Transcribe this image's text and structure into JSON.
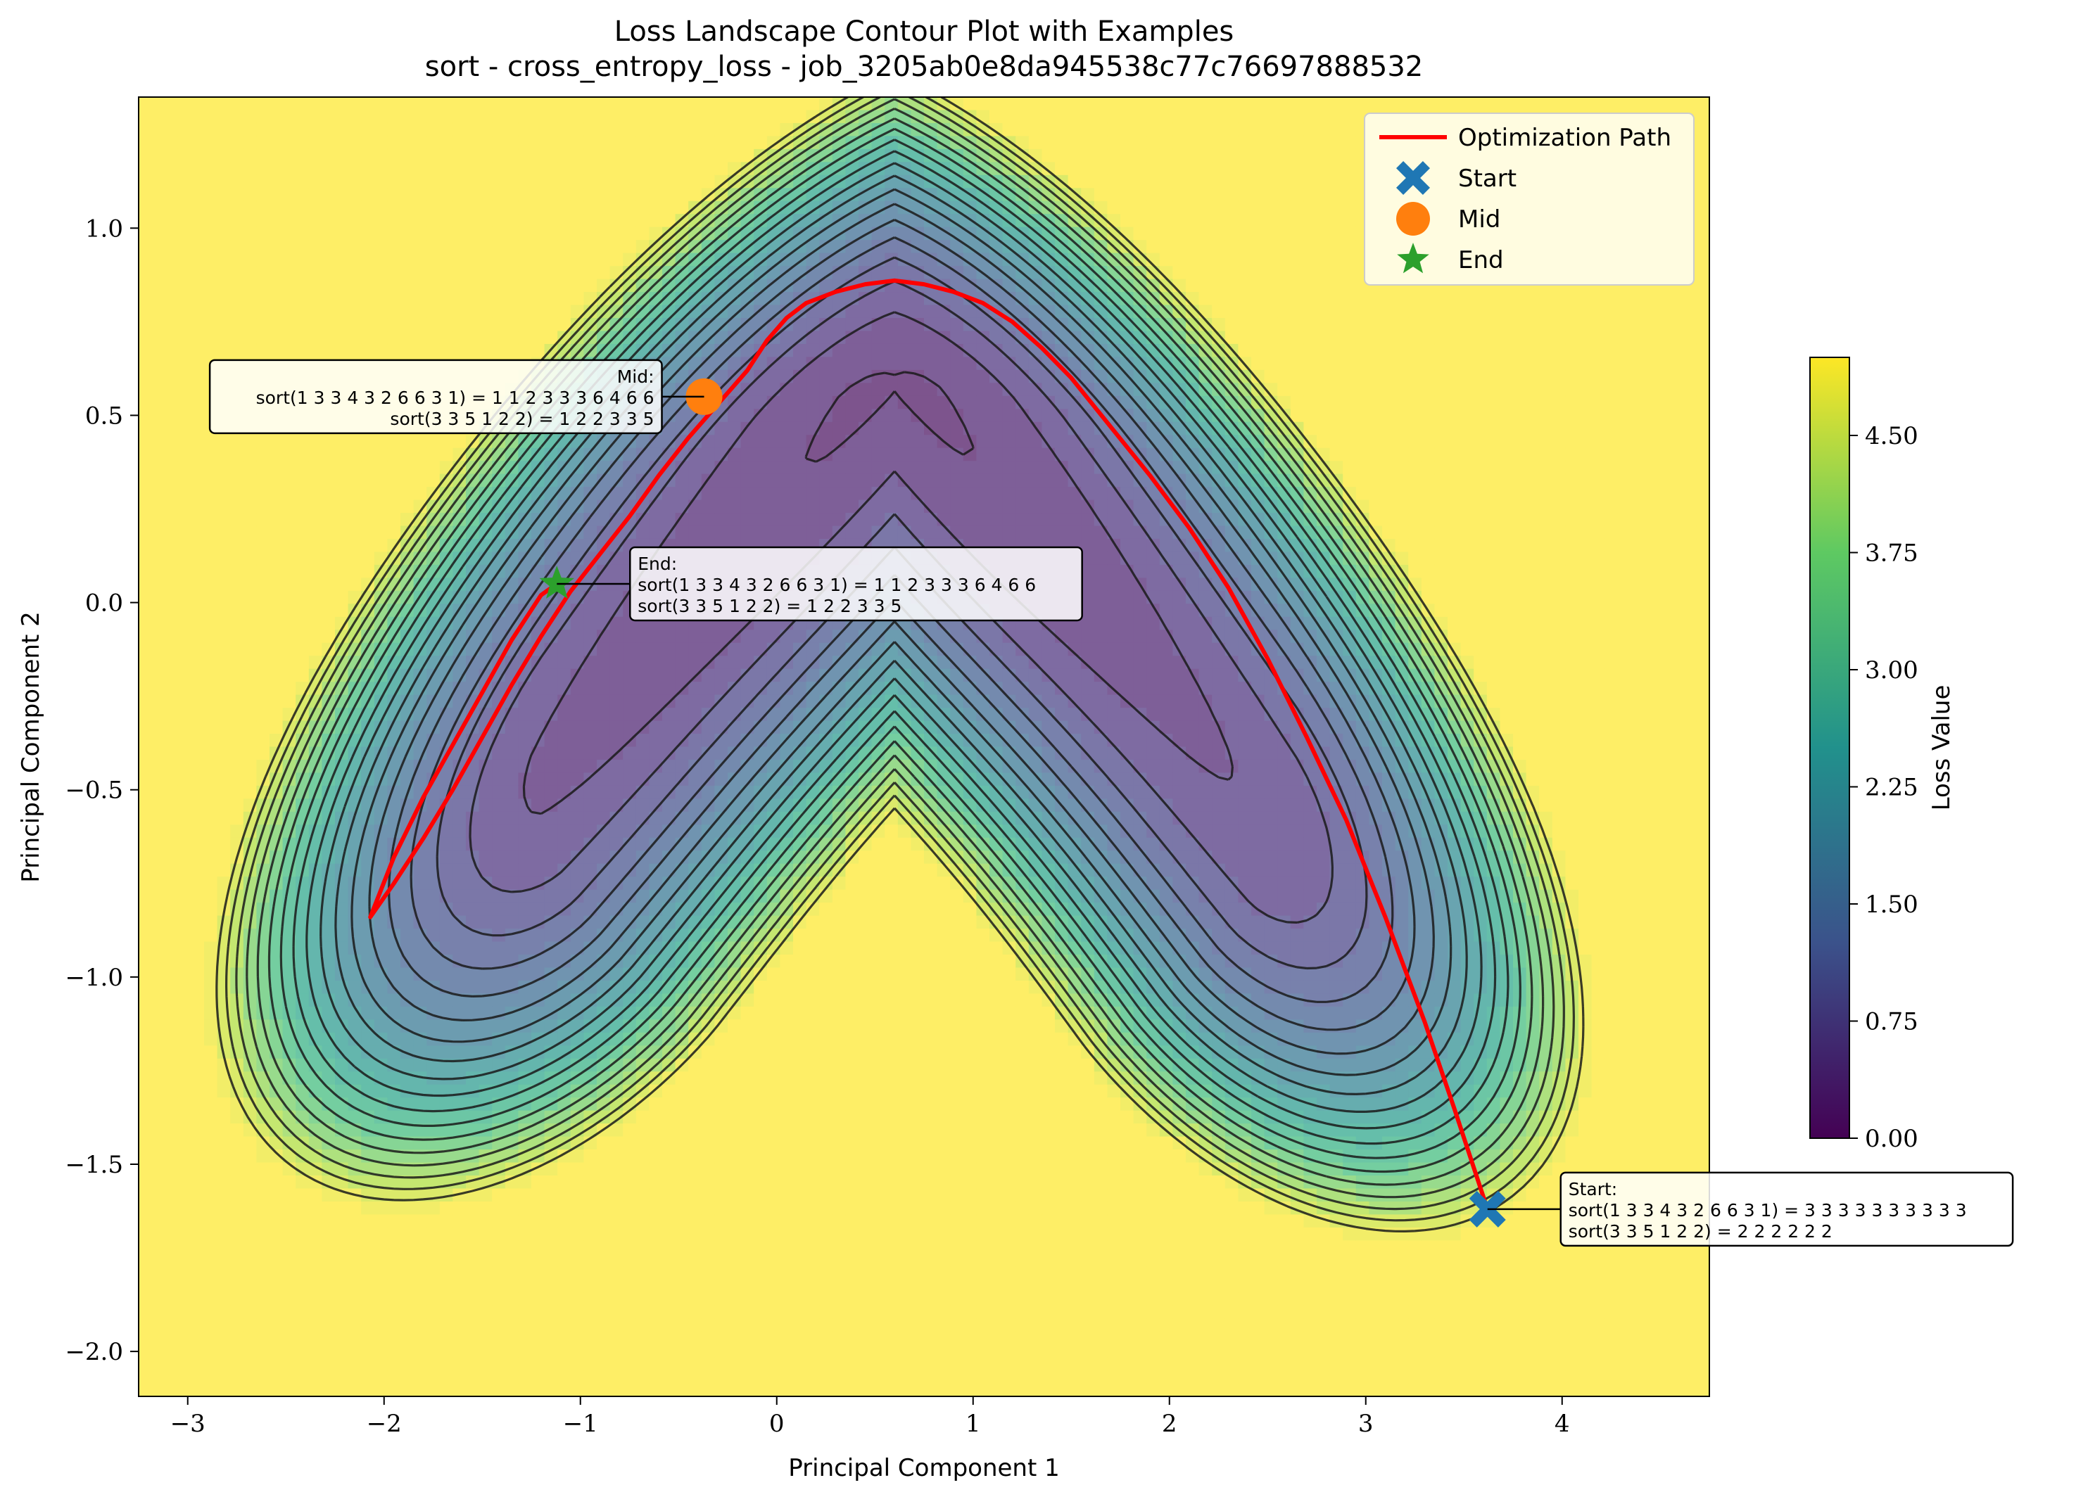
{
  "chart_data": {
    "type": "contour",
    "title": "Loss Landscape Contour Plot with Examples",
    "subtitle": "sort - cross_entropy_loss - job_3205ab0e8da945538c77c76697888532",
    "xlabel": "Principal Component 1",
    "ylabel": "Principal Component 2",
    "xlim": [
      -3.25,
      4.75
    ],
    "ylim": [
      -2.12,
      1.35
    ],
    "xticks": [
      -3,
      -2,
      -1,
      0,
      1,
      2,
      3,
      4
    ],
    "xtick_labels": [
      "−3",
      "−2",
      "−1",
      "0",
      "1",
      "2",
      "3",
      "4"
    ],
    "yticks": [
      -2.0,
      -1.5,
      -1.0,
      -0.5,
      0.0,
      0.5,
      1.0
    ],
    "ytick_labels": [
      "−2.0",
      "−1.5",
      "−1.0",
      "−0.5",
      "0.0",
      "0.5",
      "1.0"
    ],
    "colorbar": {
      "label": "Loss Value",
      "range": [
        0.0,
        5.0
      ],
      "ticks": [
        0.0,
        0.75,
        1.5,
        2.25,
        3.0,
        3.75,
        4.5
      ],
      "tick_labels": [
        "0.00",
        "0.75",
        "1.50",
        "2.25",
        "3.00",
        "3.75",
        "4.50"
      ],
      "colormap": "viridis",
      "levels": 20
    },
    "surface": {
      "model": "loss = c0 + k*((a + b*x - y^2)^2 + ...) valley shaped like an inverted V",
      "minimum_value": 0.2,
      "max_value_top_left": 4.9,
      "max_value_bottom_right": 4.9
    },
    "series": [
      {
        "name": "Optimization Path",
        "type": "line",
        "color": "#ff0000",
        "x": [
          3.62,
          3.45,
          3.3,
          3.1,
          2.9,
          2.7,
          2.5,
          2.3,
          2.1,
          1.9,
          1.7,
          1.5,
          1.35,
          1.2,
          1.05,
          0.9,
          0.75,
          0.6,
          0.45,
          0.3,
          0.15,
          0.05,
          -0.05,
          -0.15,
          -0.3,
          -0.45,
          -0.6,
          -0.75,
          -0.9,
          -1.05,
          -1.2,
          -1.35,
          -1.5,
          -1.65,
          -1.8,
          -1.95,
          -2.07,
          -1.95,
          -1.8,
          -1.65,
          -1.5,
          -1.35,
          -1.2,
          -1.12
        ],
        "y": [
          -1.62,
          -1.35,
          -1.12,
          -0.84,
          -0.58,
          -0.36,
          -0.15,
          0.04,
          0.2,
          0.34,
          0.47,
          0.6,
          0.68,
          0.75,
          0.8,
          0.83,
          0.85,
          0.86,
          0.85,
          0.83,
          0.8,
          0.76,
          0.7,
          0.62,
          0.53,
          0.44,
          0.34,
          0.23,
          0.13,
          0.03,
          -0.09,
          -0.22,
          -0.36,
          -0.5,
          -0.63,
          -0.75,
          -0.84,
          -0.68,
          -0.52,
          -0.38,
          -0.24,
          -0.1,
          0.02,
          0.05
        ]
      },
      {
        "name": "Start",
        "type": "scatter",
        "marker": "X",
        "color": "#1f77b4",
        "x": [
          3.62
        ],
        "y": [
          -1.62
        ]
      },
      {
        "name": "Mid",
        "type": "scatter",
        "marker": "o",
        "color": "#ff7f0e",
        "x": [
          -0.37
        ],
        "y": [
          0.55
        ]
      },
      {
        "name": "End",
        "type": "scatter",
        "marker": "*",
        "color": "#2ca02c",
        "x": [
          -1.12
        ],
        "y": [
          0.05
        ]
      }
    ],
    "legend": {
      "placement": "upper right",
      "entries": [
        "Optimization Path",
        "Start",
        "Mid",
        "End"
      ]
    },
    "annotations": [
      {
        "target": "Mid",
        "lines": [
          "Mid:",
          "sort(1 3 3 4 3 2 6 6 3 1) = 1 1 2 3 3 3 6 4 6 6",
          "sort(3 3 5 1 2 2) = 1 2 2 3 3 5"
        ],
        "side": "left"
      },
      {
        "target": "End",
        "lines": [
          "End:",
          "sort(1 3 3 4 3 2 6 6 3 1) = 1 1 2 3 3 3 6 4 6 6",
          "sort(3 3 5 1 2 2) = 1 2 2 3 3 5"
        ],
        "side": "right"
      },
      {
        "target": "Start",
        "lines": [
          "Start:",
          "sort(1 3 3 4 3 2 6 6 3 1) = 3 3 3 3 3 3 3 3 3 3",
          "sort(3 3 5 1 2 2) = 2 2 2 2 2 2"
        ],
        "side": "right"
      }
    ],
    "grid": false
  }
}
